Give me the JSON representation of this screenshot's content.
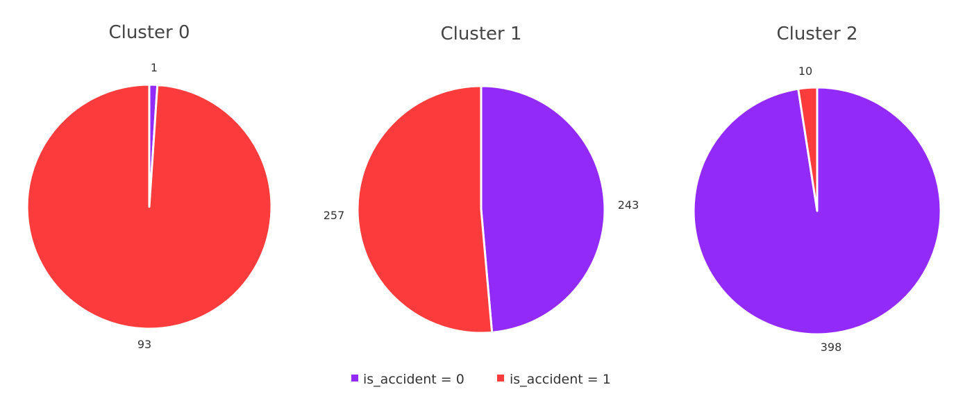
{
  "chart_data": [
    {
      "type": "pie",
      "title": "Cluster 0",
      "slices": [
        {
          "label": "is_accident = 0",
          "value": 1
        },
        {
          "label": "is_accident = 1",
          "value": 93
        }
      ]
    },
    {
      "type": "pie",
      "title": "Cluster 1",
      "slices": [
        {
          "label": "is_accident = 0",
          "value": 243
        },
        {
          "label": "is_accident = 1",
          "value": 257
        }
      ]
    },
    {
      "type": "pie",
      "title": "Cluster 2",
      "slices": [
        {
          "label": "is_accident = 0",
          "value": 398
        },
        {
          "label": "is_accident = 1",
          "value": 10
        }
      ]
    }
  ],
  "legend": {
    "items": [
      {
        "label": "is_accident = 0",
        "color": "#922AFA"
      },
      {
        "label": "is_accident = 1",
        "color": "#FC3C3C"
      }
    ]
  }
}
